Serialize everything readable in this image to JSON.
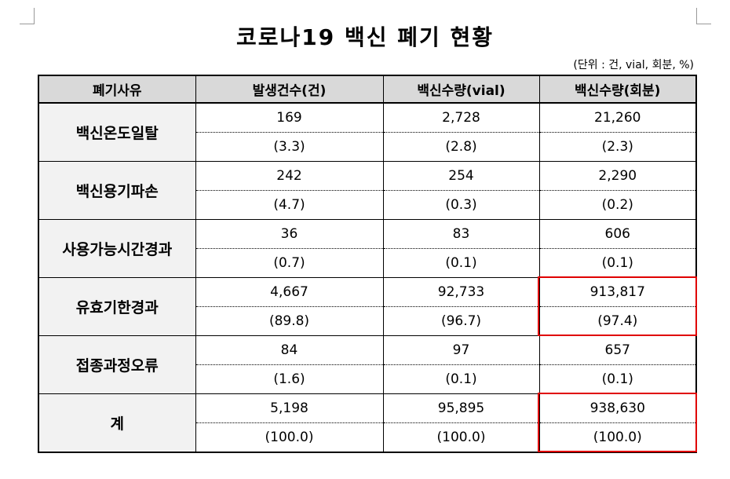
{
  "header": {
    "title": "코로나19 백신 폐기 현황",
    "unit": "(단위 : 건, vial, 회분, %)"
  },
  "table": {
    "columns": [
      "폐기사유",
      "발생건수(건)",
      "백신수량(vial)",
      "백신수량(회분)"
    ],
    "rows": [
      {
        "label": "백신온도일탈",
        "values": [
          "169",
          "2,728",
          "21,260"
        ],
        "shares": [
          "(3.3)",
          "(2.8)",
          "(2.3)"
        ]
      },
      {
        "label": "백신용기파손",
        "values": [
          "242",
          "254",
          "2,290"
        ],
        "shares": [
          "(4.7)",
          "(0.3)",
          "(0.2)"
        ]
      },
      {
        "label": "사용가능시간경과",
        "values": [
          "36",
          "83",
          "606"
        ],
        "shares": [
          "(0.7)",
          "(0.1)",
          "(0.1)"
        ]
      },
      {
        "label": "유효기한경과",
        "values": [
          "4,667",
          "92,733",
          "913,817"
        ],
        "shares": [
          "(89.8)",
          "(96.7)",
          "(97.4)"
        ]
      },
      {
        "label": "접종과정오류",
        "values": [
          "84",
          "97",
          "657"
        ],
        "shares": [
          "(1.6)",
          "(0.1)",
          "(0.1)"
        ]
      },
      {
        "label": "계",
        "values": [
          "5,198",
          "95,895",
          "938,630"
        ],
        "shares": [
          "(100.0)",
          "(100.0)",
          "(100.0)"
        ]
      }
    ]
  }
}
